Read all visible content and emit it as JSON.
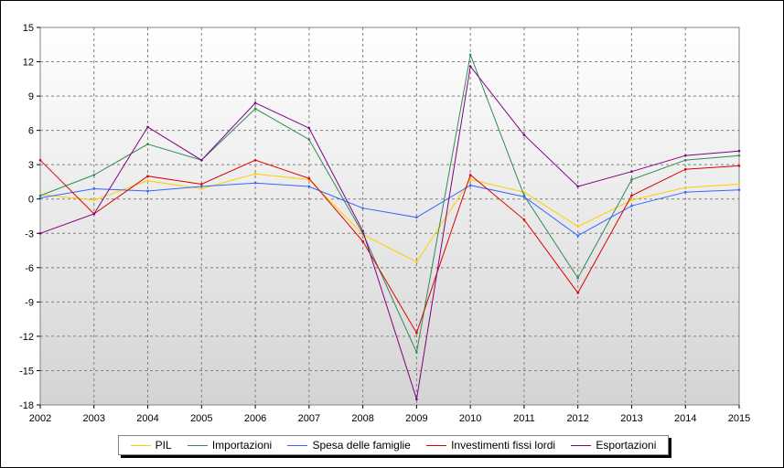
{
  "chart_data": {
    "type": "line",
    "title": "",
    "xlabel": "",
    "ylabel": "",
    "x": [
      "2002",
      "2003",
      "2004",
      "2005",
      "2006",
      "2007",
      "2008",
      "2009",
      "2010",
      "2011",
      "2012",
      "2013",
      "2014",
      "2015"
    ],
    "ylim": [
      -18,
      15
    ],
    "yticks": [
      15,
      12,
      9,
      6,
      3,
      0,
      -3,
      -6,
      -9,
      -12,
      -15,
      -18
    ],
    "grid": true,
    "legend_position": "bottom",
    "series": [
      {
        "name": "PIL",
        "color": "#ffcc00",
        "values": [
          0.4,
          -0.1,
          1.6,
          0.9,
          2.2,
          1.7,
          -3.1,
          -5.5,
          1.7,
          0.6,
          -2.4,
          -0.1,
          1.0,
          1.3
        ]
      },
      {
        "name": "Importazioni",
        "color": "#2e8b57",
        "values": [
          0.3,
          2.1,
          4.8,
          3.4,
          7.9,
          5.2,
          -3.0,
          -13.4,
          12.6,
          0.3,
          -6.9,
          1.7,
          3.4,
          3.8
        ]
      },
      {
        "name": "Spesa delle famiglie",
        "color": "#3366ff",
        "values": [
          0.1,
          0.9,
          0.7,
          1.1,
          1.4,
          1.1,
          -0.8,
          -1.6,
          1.2,
          0.2,
          -3.2,
          -0.6,
          0.6,
          0.8
        ]
      },
      {
        "name": "Investimenti fissi lordi",
        "color": "#dd0000",
        "values": [
          3.4,
          -1.3,
          2.0,
          1.3,
          3.4,
          1.8,
          -3.7,
          -11.7,
          2.1,
          -1.8,
          -8.2,
          0.3,
          2.6,
          2.9
        ]
      },
      {
        "name": "Esportazioni",
        "color": "#800080",
        "values": [
          -3.0,
          -1.3,
          6.3,
          3.4,
          8.4,
          6.2,
          -2.8,
          -17.5,
          11.6,
          5.6,
          1.1,
          2.4,
          3.8,
          4.2
        ]
      }
    ]
  }
}
